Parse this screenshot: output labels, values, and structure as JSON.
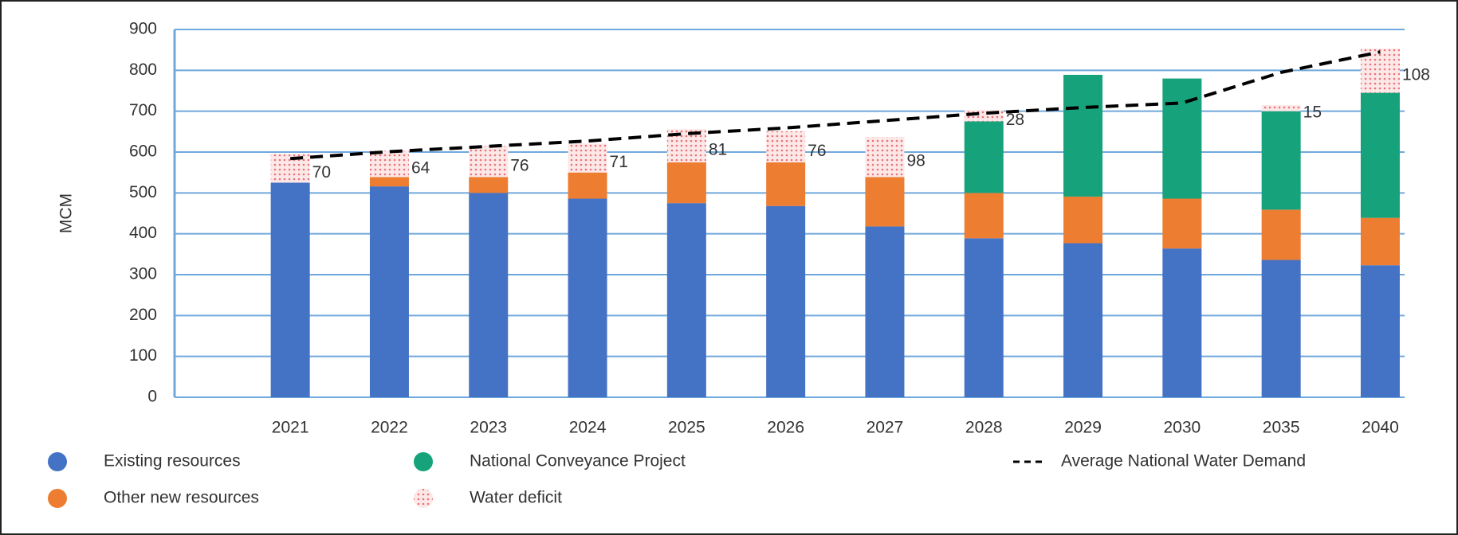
{
  "chart_data": {
    "type": "bar",
    "stacked": true,
    "y_label": "MCM",
    "categories": [
      "2021",
      "2022",
      "2023",
      "2024",
      "2025",
      "2026",
      "2027",
      "2028",
      "2029",
      "2030",
      "2035",
      "2040"
    ],
    "series": [
      {
        "name": "Existing resources",
        "color": "#4472c4",
        "values": [
          525,
          516,
          500,
          486,
          475,
          468,
          418,
          389,
          377,
          364,
          336,
          323
        ]
      },
      {
        "name": "Other new resources",
        "color": "#ed7d31",
        "values": [
          0,
          23,
          39,
          64,
          100,
          107,
          121,
          111,
          114,
          122,
          123,
          116
        ]
      },
      {
        "name": "National Conveyance Project",
        "color": "#16a37b",
        "values": [
          0,
          0,
          0,
          0,
          0,
          0,
          0,
          175,
          298,
          294,
          241,
          306
        ]
      },
      {
        "name": "Water deficit",
        "color": "#f2a3a8",
        "pattern": "dots",
        "label_color": "#e8424a",
        "values": [
          70,
          64,
          76,
          71,
          81,
          76,
          98,
          28,
          null,
          null,
          15,
          108
        ]
      },
      {
        "name": "Average National Water Demand",
        "color": "#000000",
        "kind": "line",
        "dashed": true,
        "values": [
          584,
          601,
          614,
          627,
          645,
          659,
          677,
          695,
          709,
          720,
          795,
          845
        ]
      }
    ],
    "ylim": [
      0,
      900
    ],
    "yticks": [
      0,
      100,
      200,
      300,
      400,
      500,
      600,
      700,
      800,
      900
    ],
    "grid": true,
    "grid_color": "#6fa8dc"
  }
}
